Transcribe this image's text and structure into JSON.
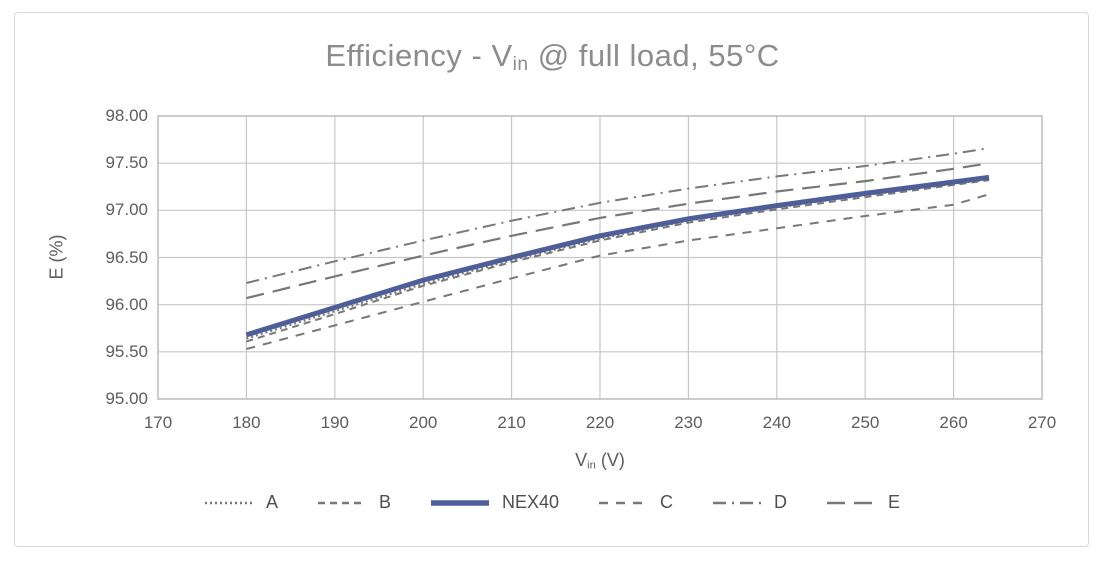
{
  "title": {
    "prefix": "Efficiency - V",
    "subscript": "in",
    "suffix": " @ full load, 55°C"
  },
  "axes": {
    "y_title": "E (%)",
    "x_title_prefix": "V",
    "x_title_subscript": "in",
    "x_title_suffix": " (V)"
  },
  "colors": {
    "accent_series": "#4e5e99",
    "comparison_series": "#787878",
    "gridline": "#c6c6c6",
    "plot_border": "#bdbdbd",
    "title_text": "#8c8c8c",
    "axis_text": "#5d5d5d",
    "legend_text": "#4f4f4f"
  },
  "chart_data": {
    "type": "line",
    "title": "Efficiency - Vin @ full load, 55°C",
    "xlabel": "Vin (V)",
    "ylabel": "E (%)",
    "xlim": [
      170,
      270
    ],
    "ylim": [
      95.0,
      98.0
    ],
    "grid": true,
    "legend_position": "bottom",
    "x_ticks": [
      170,
      180,
      190,
      200,
      210,
      220,
      230,
      240,
      250,
      260,
      270
    ],
    "y_ticks": [
      95.0,
      95.5,
      96.0,
      96.5,
      97.0,
      97.5,
      98.0
    ],
    "y_tick_labels": [
      "95.00",
      "95.50",
      "96.00",
      "96.50",
      "97.00",
      "97.50",
      "98.00"
    ],
    "x": [
      180,
      190,
      200,
      210,
      220,
      230,
      240,
      250,
      260,
      264
    ],
    "series": [
      {
        "name": "A",
        "color": "#787878",
        "dash": "2 3",
        "width": 2,
        "values": [
          95.64,
          95.93,
          96.22,
          96.47,
          96.7,
          96.89,
          97.03,
          97.16,
          97.28,
          97.33
        ]
      },
      {
        "name": "B",
        "color": "#787878",
        "dash": "7 5",
        "width": 2,
        "values": [
          95.61,
          95.9,
          96.2,
          96.45,
          96.68,
          96.87,
          97.01,
          97.14,
          97.27,
          97.32
        ]
      },
      {
        "name": "NEX40",
        "color": "#4e5e99",
        "dash": "",
        "width": 5,
        "values": [
          95.68,
          95.97,
          96.26,
          96.5,
          96.73,
          96.91,
          97.05,
          97.18,
          97.3,
          97.35
        ]
      },
      {
        "name": "C",
        "color": "#787878",
        "dash": "9 8",
        "width": 2,
        "values": [
          95.53,
          95.78,
          96.03,
          96.28,
          96.52,
          96.68,
          96.81,
          96.94,
          97.06,
          97.17
        ]
      },
      {
        "name": "D",
        "color": "#787878",
        "dash": "13 6 2 6",
        "width": 2,
        "values": [
          96.23,
          96.46,
          96.68,
          96.89,
          97.08,
          97.23,
          97.36,
          97.47,
          97.6,
          97.66
        ]
      },
      {
        "name": "E",
        "color": "#787878",
        "dash": "18 9",
        "width": 2.2,
        "values": [
          96.07,
          96.3,
          96.52,
          96.73,
          96.92,
          97.07,
          97.2,
          97.31,
          97.44,
          97.5
        ]
      }
    ]
  }
}
